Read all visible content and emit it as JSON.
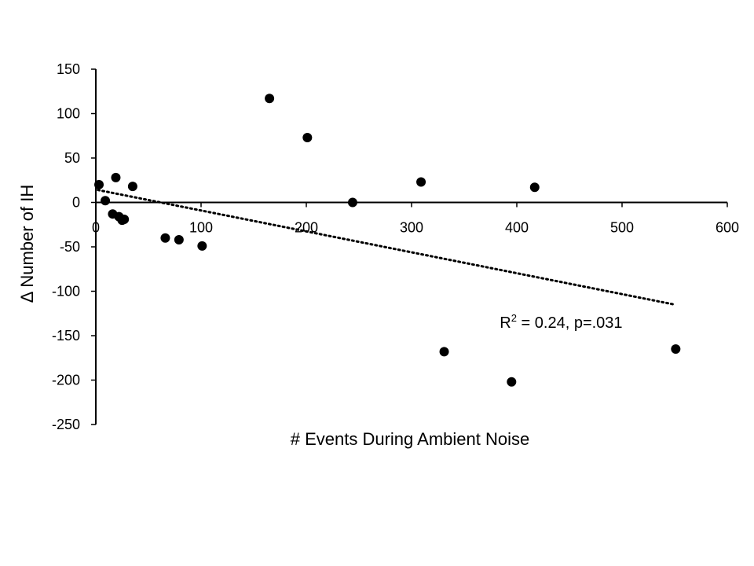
{
  "chart_data": {
    "type": "scatter",
    "title": "",
    "xlabel": "# Events During Ambient Noise",
    "ylabel": "Δ Number of IH",
    "xlim": [
      0,
      600
    ],
    "ylim": [
      -250,
      150
    ],
    "xticks": [
      0,
      100,
      200,
      300,
      400,
      500,
      600
    ],
    "yticks": [
      150,
      100,
      50,
      0,
      -50,
      -100,
      -150,
      -200,
      -250
    ],
    "grid": false,
    "legend": "none",
    "marker_color": "#000000",
    "points": [
      {
        "x": 3,
        "y": 20
      },
      {
        "x": 9,
        "y": 2
      },
      {
        "x": 16,
        "y": -13
      },
      {
        "x": 19,
        "y": 28
      },
      {
        "x": 22,
        "y": -16
      },
      {
        "x": 25,
        "y": -20
      },
      {
        "x": 27,
        "y": -19
      },
      {
        "x": 35,
        "y": 18
      },
      {
        "x": 66,
        "y": -40
      },
      {
        "x": 79,
        "y": -42
      },
      {
        "x": 101,
        "y": -49
      },
      {
        "x": 165,
        "y": 117
      },
      {
        "x": 201,
        "y": 73
      },
      {
        "x": 244,
        "y": 0
      },
      {
        "x": 309,
        "y": 23
      },
      {
        "x": 331,
        "y": -168
      },
      {
        "x": 395,
        "y": -202
      },
      {
        "x": 417,
        "y": 17
      },
      {
        "x": 551,
        "y": -165
      }
    ],
    "trendline": {
      "style": "dotted",
      "x": [
        2,
        550
      ],
      "y": [
        14,
        -115
      ]
    },
    "annotation": {
      "text_prefix": "R",
      "superscript": "2",
      "text_suffix": " = 0.24, p=.031",
      "x": 395,
      "y": -135
    }
  }
}
